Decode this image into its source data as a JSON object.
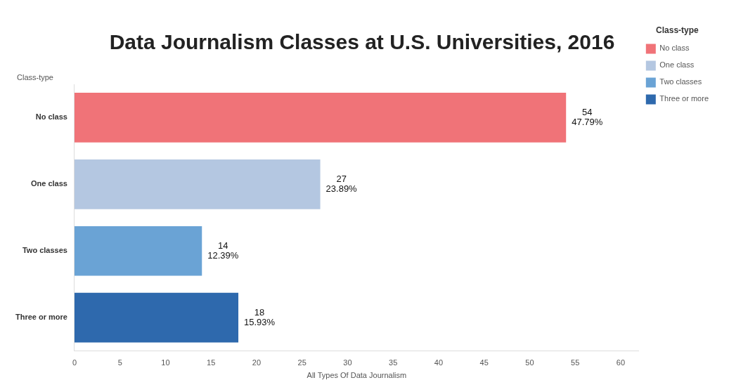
{
  "chart_data": {
    "type": "bar",
    "orientation": "horizontal",
    "stacked": true,
    "title": "Data Journalism Classes at U.S. Universities, 2016",
    "ylabel": "Class-type",
    "xlabel": "All Types Of Data Journalism",
    "legend_title": "Class-type",
    "legend": "top right",
    "categories": [
      "No class",
      "One class",
      "Two classes",
      "Three or more"
    ],
    "series": [
      {
        "name": "No class",
        "color": "#f07378",
        "values": [
          54,
          null,
          null,
          null
        ],
        "value_labels": [
          "54\n47.79%",
          null,
          null,
          null
        ]
      },
      {
        "name": "One class",
        "color": "#b4c7e1",
        "values": [
          null,
          27,
          null,
          null
        ],
        "value_labels": [
          null,
          "27\n23.89%",
          null,
          null
        ]
      },
      {
        "name": "Two classes",
        "color": "#6aa3d5",
        "values": [
          null,
          null,
          14,
          null
        ],
        "value_labels": [
          null,
          null,
          "14\n12.39%",
          null
        ]
      },
      {
        "name": "Three or more",
        "color": "#2e69ad",
        "values": [
          null,
          null,
          null,
          18
        ],
        "value_labels": [
          null,
          null,
          null,
          "18\n15.93%"
        ]
      }
    ],
    "xlim": [
      0,
      62
    ],
    "xticks": [
      0,
      5,
      10,
      15,
      20,
      25,
      30,
      35,
      40,
      45,
      50,
      55,
      60
    ],
    "grid": false
  }
}
